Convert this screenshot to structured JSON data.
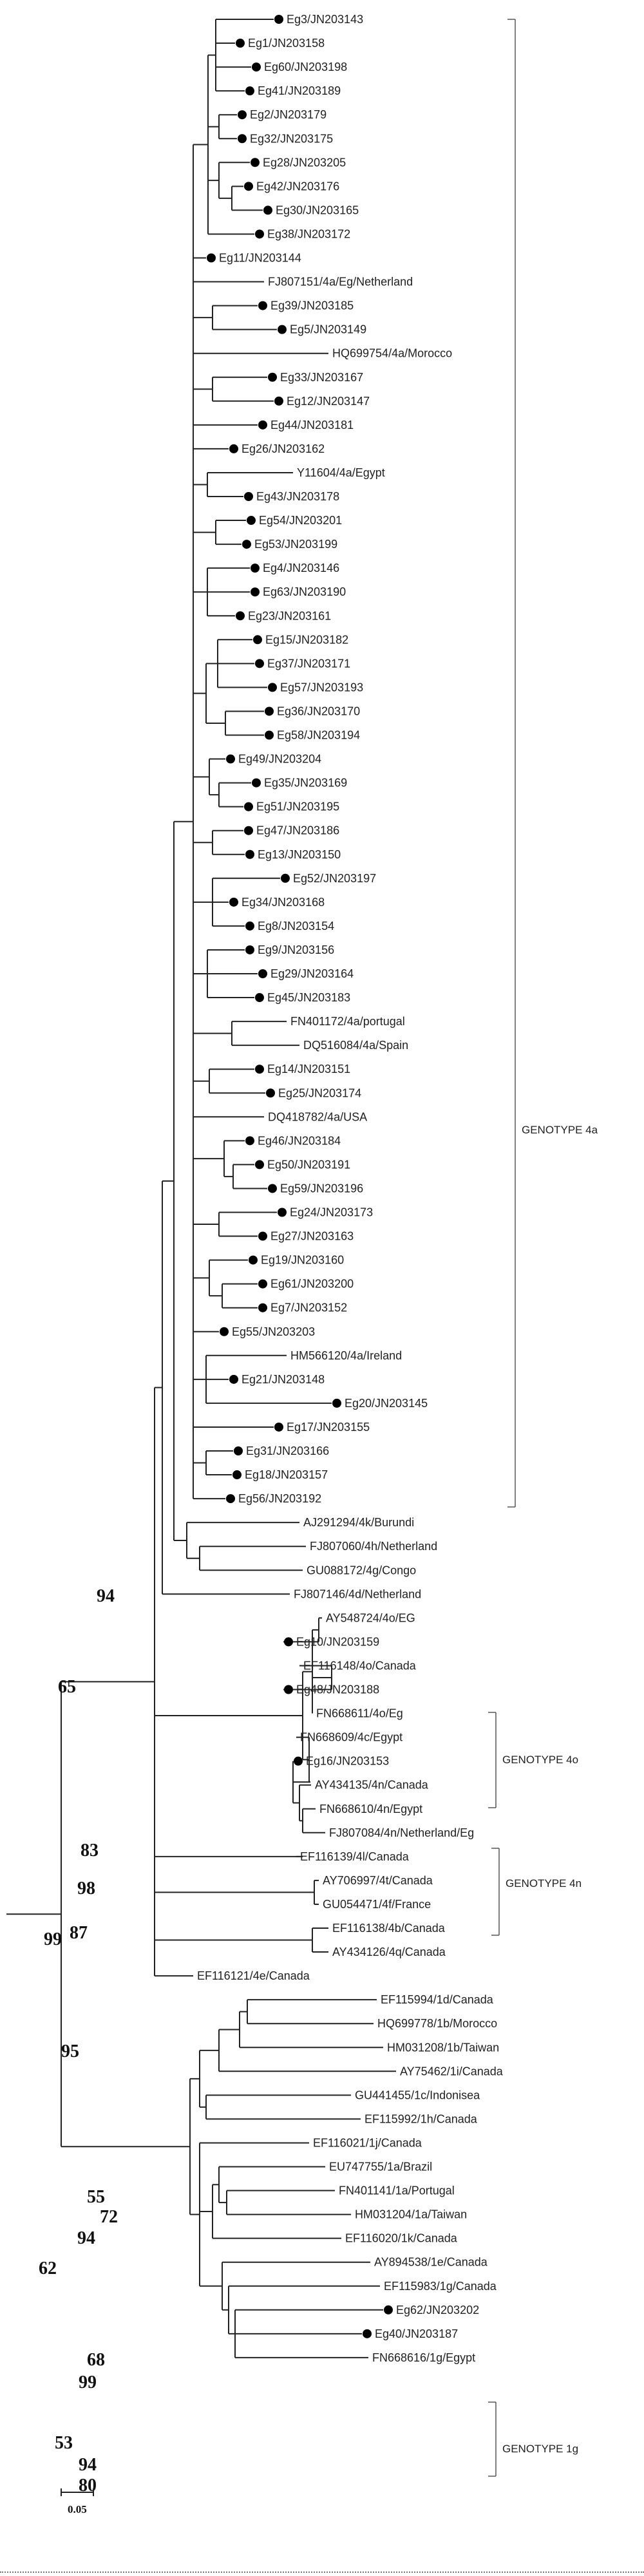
{
  "figure": {
    "taxa": [
      {
        "name": "Eg3/JN203143",
        "dot": true
      },
      {
        "name": "Eg1/JN203158",
        "dot": true
      },
      {
        "name": "Eg60/JN203198",
        "dot": true
      },
      {
        "name": "Eg41/JN203189",
        "dot": true
      },
      {
        "name": "Eg2/JN203179",
        "dot": true
      },
      {
        "name": "Eg32/JN203175",
        "dot": true
      },
      {
        "name": "Eg28/JN203205",
        "dot": true
      },
      {
        "name": "Eg42/JN203176",
        "dot": true
      },
      {
        "name": "Eg30/JN203165",
        "dot": true
      },
      {
        "name": "Eg38/JN203172",
        "dot": true
      },
      {
        "name": "Eg11/JN203144",
        "dot": true
      },
      {
        "name": "FJ807151/4a/Eg/Netherland",
        "dot": false
      },
      {
        "name": "Eg39/JN203185",
        "dot": true
      },
      {
        "name": "Eg5/JN203149",
        "dot": true
      },
      {
        "name": "HQ699754/4a/Morocco",
        "dot": false
      },
      {
        "name": "Eg33/JN203167",
        "dot": true
      },
      {
        "name": "Eg12/JN203147",
        "dot": true
      },
      {
        "name": "Eg44/JN203181",
        "dot": true
      },
      {
        "name": "Eg26/JN203162",
        "dot": true
      },
      {
        "name": "Y11604/4a/Egypt",
        "dot": false
      },
      {
        "name": "Eg43/JN203178",
        "dot": true
      },
      {
        "name": "Eg54/JN203201",
        "dot": true
      },
      {
        "name": "Eg53/JN203199",
        "dot": true
      },
      {
        "name": "Eg4/JN203146",
        "dot": true
      },
      {
        "name": "Eg63/JN203190",
        "dot": true
      },
      {
        "name": "Eg23/JN203161",
        "dot": true
      },
      {
        "name": "Eg15/JN203182",
        "dot": true
      },
      {
        "name": "Eg37/JN203171",
        "dot": true
      },
      {
        "name": "Eg57/JN203193",
        "dot": true
      },
      {
        "name": "Eg36/JN203170",
        "dot": true
      },
      {
        "name": "Eg58/JN203194",
        "dot": true
      },
      {
        "name": "Eg49/JN203204",
        "dot": true
      },
      {
        "name": "Eg35/JN203169",
        "dot": true
      },
      {
        "name": "Eg51/JN203195",
        "dot": true
      },
      {
        "name": "Eg47/JN203186",
        "dot": true
      },
      {
        "name": "Eg13/JN203150",
        "dot": true
      },
      {
        "name": "Eg52/JN203197",
        "dot": true
      },
      {
        "name": "Eg34/JN203168",
        "dot": true
      },
      {
        "name": "Eg8/JN203154",
        "dot": true
      },
      {
        "name": "Eg9/JN203156",
        "dot": true
      },
      {
        "name": "Eg29/JN203164",
        "dot": true
      },
      {
        "name": "Eg45/JN203183",
        "dot": true
      },
      {
        "name": "FN401172/4a/portugal",
        "dot": false
      },
      {
        "name": "DQ516084/4a/Spain",
        "dot": false
      },
      {
        "name": "Eg14/JN203151",
        "dot": true
      },
      {
        "name": "Eg25/JN203174",
        "dot": true
      },
      {
        "name": "DQ418782/4a/USA",
        "dot": false
      },
      {
        "name": "Eg46/JN203184",
        "dot": true
      },
      {
        "name": "Eg50/JN203191",
        "dot": true
      },
      {
        "name": "Eg59/JN203196",
        "dot": true
      },
      {
        "name": "Eg24/JN203173",
        "dot": true
      },
      {
        "name": "Eg27/JN203163",
        "dot": true
      },
      {
        "name": "Eg19/JN203160",
        "dot": true
      },
      {
        "name": "Eg61/JN203200",
        "dot": true
      },
      {
        "name": "Eg7/JN203152",
        "dot": true
      },
      {
        "name": "Eg55/JN203203",
        "dot": true
      },
      {
        "name": "HM566120/4a/Ireland",
        "dot": false
      },
      {
        "name": "Eg21/JN203148",
        "dot": true
      },
      {
        "name": "Eg20/JN203145",
        "dot": true
      },
      {
        "name": "Eg17/JN203155",
        "dot": true
      },
      {
        "name": "Eg31/JN203166",
        "dot": true
      },
      {
        "name": "Eg18/JN203157",
        "dot": true
      },
      {
        "name": "Eg56/JN203192",
        "dot": true
      },
      {
        "name": "AJ291294/4k/Burundi",
        "dot": false
      },
      {
        "name": "FJ807060/4h/Netherland",
        "dot": false
      },
      {
        "name": "GU088172/4g/Congo",
        "dot": false
      },
      {
        "name": "FJ807146/4d/Netherland",
        "dot": false
      },
      {
        "name": "AY548724/4o/EG",
        "dot": false
      },
      {
        "name": "Eg10/JN203159",
        "dot": true
      },
      {
        "name": "EF116148/4o/Canada",
        "dot": false
      },
      {
        "name": "Eg48/JN203188",
        "dot": true
      },
      {
        "name": "FN668611/4o/Eg",
        "dot": false
      },
      {
        "name": "FN668609/4c/Egypt",
        "dot": false
      },
      {
        "name": "Eg16/JN203153",
        "dot": true
      },
      {
        "name": "AY434135/4n/Canada",
        "dot": false
      },
      {
        "name": "FN668610/4n/Egypt",
        "dot": false
      },
      {
        "name": "FJ807084/4n/Netherland/Eg",
        "dot": false
      },
      {
        "name": "EF116139/4l/Canada",
        "dot": false
      },
      {
        "name": "AY706997/4t/Canada",
        "dot": false
      },
      {
        "name": "GU054471/4f/France",
        "dot": false
      },
      {
        "name": "EF116138/4b/Canada",
        "dot": false
      },
      {
        "name": "AY434126/4q/Canada",
        "dot": false
      },
      {
        "name": "EF116121/4e/Canada",
        "dot": false
      },
      {
        "name": "EF115994/1d/Canada",
        "dot": false
      },
      {
        "name": "HQ699778/1b/Morocco",
        "dot": false
      },
      {
        "name": "HM031208/1b/Taiwan",
        "dot": false
      },
      {
        "name": "AY75462/1i/Canada",
        "dot": false
      },
      {
        "name": "GU441455/1c/Indonisea",
        "dot": false
      },
      {
        "name": "EF115992/1h/Canada",
        "dot": false
      },
      {
        "name": "EF116021/1j/Canada",
        "dot": false
      },
      {
        "name": "EU747755/1a/Brazil",
        "dot": false
      },
      {
        "name": "FN401141/1a/Portugal",
        "dot": false
      },
      {
        "name": "HM031204/1a/Taiwan",
        "dot": false
      },
      {
        "name": "EF116020/1k/Canada",
        "dot": false
      },
      {
        "name": "AY894538/1e/Canada",
        "dot": false
      },
      {
        "name": "EF115983/1g/Canada",
        "dot": false
      },
      {
        "name": "Eg62/JN203202",
        "dot": true
      },
      {
        "name": "Eg40/JN203187",
        "dot": true
      },
      {
        "name": "FN668616/1g/Egypt",
        "dot": false
      }
    ],
    "bootstrap": [
      "94",
      "65",
      "99",
      "83",
      "98",
      "87",
      "95",
      "55",
      "72",
      "94",
      "62",
      "68",
      "99",
      "53",
      "94",
      "80"
    ],
    "genotypes": [
      "GENOTYPE 4a",
      "GENOTYPE 4o",
      "GENOTYPE 4n",
      "GENOTYPE 1g"
    ],
    "scale_bar": {
      "value": 0.05,
      "label": "0.05"
    }
  }
}
